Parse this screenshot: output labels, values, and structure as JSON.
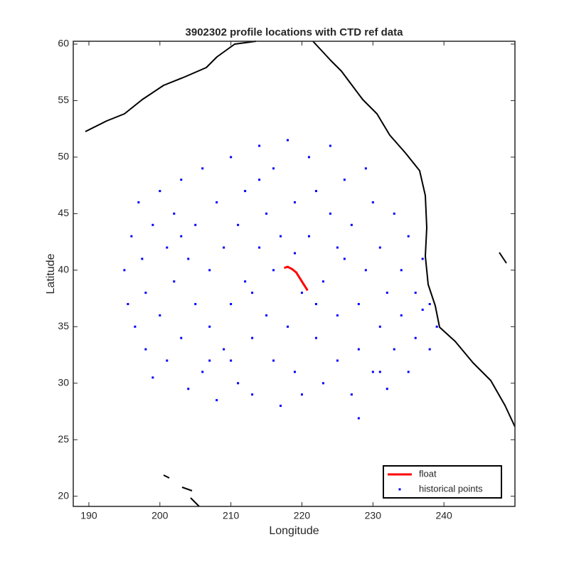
{
  "chart_data": {
    "type": "scatter",
    "title": "3902302 profile locations with CTD ref data",
    "xlabel": "Longitude",
    "ylabel": "Latitude",
    "xlim": [
      187.8,
      250
    ],
    "ylim": [
      19.1,
      60.25
    ],
    "xticks": [
      190,
      200,
      210,
      220,
      230,
      240
    ],
    "yticks": [
      20,
      25,
      30,
      35,
      40,
      45,
      50,
      55,
      60
    ],
    "legend": "southeast",
    "series": [
      {
        "name": "float",
        "color": "#ff0000",
        "mode": "line",
        "x": [
          217.5,
          218,
          218.6,
          219.2,
          219.5,
          220.2,
          220.8
        ],
        "y": [
          40.2,
          40.3,
          40.1,
          39.8,
          39.5,
          38.8,
          38.2
        ]
      },
      {
        "name": "historical points",
        "color": "#0000ff",
        "mode": "dots",
        "x": [
          195,
          195.5,
          196,
          196.5,
          197,
          197.5,
          198,
          198,
          199,
          199,
          200,
          200,
          201,
          201,
          202,
          202,
          203,
          203,
          204,
          204,
          205,
          205,
          206,
          206,
          207,
          207,
          208,
          208,
          209,
          209,
          210,
          210,
          211,
          211,
          212,
          212,
          213,
          213,
          214,
          214,
          215,
          215,
          216,
          216,
          217,
          217,
          218,
          218,
          219,
          219,
          220,
          220,
          221,
          221,
          222,
          222,
          223,
          223,
          224,
          224,
          225,
          225,
          226,
          226,
          227,
          227,
          228,
          228,
          229,
          229,
          230,
          230,
          231,
          231,
          232,
          232,
          233,
          233,
          234,
          234,
          235,
          235,
          236,
          236,
          237,
          237,
          238,
          238,
          239,
          203,
          207,
          213,
          219,
          225,
          228,
          216,
          222,
          210,
          231,
          214
        ],
        "y": [
          40,
          37,
          43,
          35,
          46,
          41,
          33,
          38,
          44,
          30.5,
          47,
          36,
          42,
          32,
          39,
          45,
          34,
          48,
          41,
          29.5,
          37,
          44,
          31,
          49,
          40,
          35,
          46,
          28.5,
          33,
          42,
          50,
          37,
          30,
          44,
          39,
          47,
          34,
          29,
          51,
          42,
          36,
          45,
          32,
          49,
          28,
          43,
          35,
          51.5,
          31,
          46,
          38,
          29,
          50,
          43,
          34,
          47,
          30,
          39,
          45,
          51,
          36,
          32,
          48,
          41,
          29,
          44,
          37,
          33,
          49,
          40,
          31,
          46,
          35,
          42,
          29.5,
          38,
          45,
          33,
          40,
          36,
          43,
          31,
          38,
          34,
          41,
          36.5,
          37,
          33,
          35,
          43,
          32,
          38,
          41.5,
          42,
          26.9,
          40,
          37,
          32,
          31,
          48
        ]
      }
    ]
  }
}
